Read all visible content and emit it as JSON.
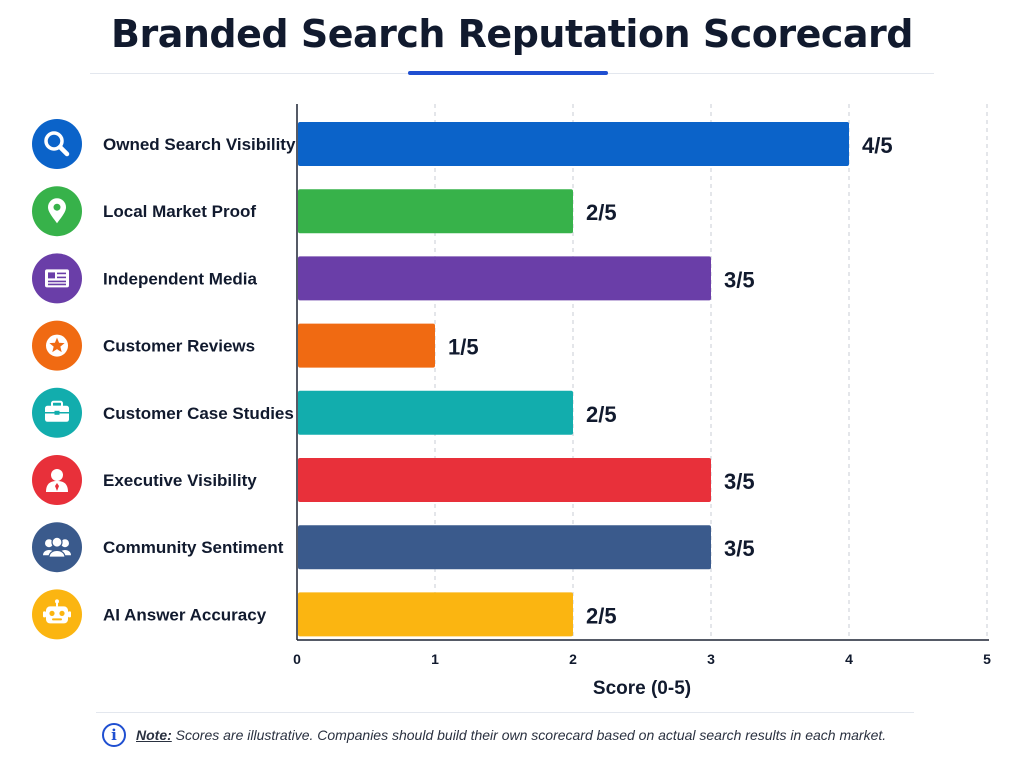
{
  "title": "Branded Search Reputation Scorecard",
  "note": {
    "label": "Note:",
    "text": "Scores are illustrative. Companies should build their own scorecard based on actual search results in each market."
  },
  "chart_data": {
    "type": "bar",
    "orientation": "horizontal",
    "xlabel": "Score (0-5)",
    "xlim": [
      0,
      5
    ],
    "xticks": [
      "0",
      "1",
      "2",
      "3",
      "4",
      "5"
    ],
    "grid": "vertical dashed",
    "categories": [
      "Owned Search Visibility",
      "Local Market Proof",
      "Independent Media",
      "Customer Reviews",
      "Customer Case Studies",
      "Executive Visibility",
      "Community Sentiment",
      "AI Answer Accuracy"
    ],
    "values": [
      4,
      2,
      3,
      1,
      2,
      3,
      3,
      2
    ],
    "value_labels": [
      "4/5",
      "2/5",
      "3/5",
      "1/5",
      "2/5",
      "3/5",
      "3/5",
      "2/5"
    ],
    "colors": [
      "#0b63c9",
      "#37b24a",
      "#6a3ea8",
      "#f06a12",
      "#12adad",
      "#e8303a",
      "#3a5a8c",
      "#fbb511"
    ],
    "icons": [
      "search-icon",
      "map-pin-icon",
      "newspaper-icon",
      "star-icon",
      "briefcase-icon",
      "person-icon",
      "group-icon",
      "robot-icon"
    ]
  }
}
